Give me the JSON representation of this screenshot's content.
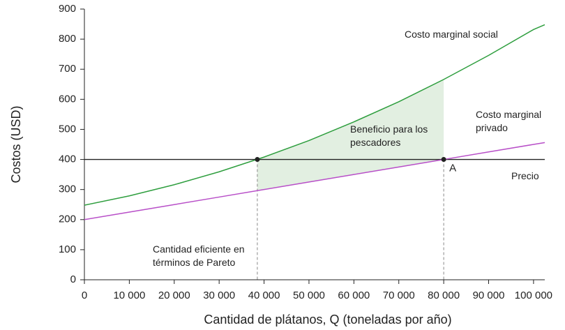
{
  "chart_data": {
    "type": "line",
    "xlabel": "Cantidad de plátanos, Q (toneladas por año)",
    "ylabel": "Costos (USD)",
    "x": [
      0,
      10000,
      20000,
      30000,
      40000,
      50000,
      60000,
      70000,
      80000,
      90000,
      100000,
      102500
    ],
    "series": [
      {
        "name": "Costo marginal social",
        "color": "#2e9e3e",
        "values": [
          248,
          279,
          316,
          359,
          408,
          463,
          525,
          592,
          666,
          746,
          832,
          848
        ]
      },
      {
        "name": "Costo marginal privado",
        "color": "#b84fc8",
        "values": [
          200,
          225,
          250,
          275,
          300,
          325,
          350,
          375,
          400,
          425,
          450,
          456
        ]
      }
    ],
    "price": {
      "name": "Precio",
      "value": 400,
      "color": "#222222"
    },
    "points": [
      {
        "x": 38500,
        "y": 400
      },
      {
        "x": 80000,
        "y": 400,
        "label": "A"
      }
    ],
    "area_label": "Beneficio para los pescadores",
    "area_color": "#e2efe1",
    "vline_label": "Cantidad eficiente en términos de Pareto",
    "xlim": [
      0,
      102500
    ],
    "ylim": [
      0,
      900
    ],
    "xticks": [
      0,
      {
        "value": 10000,
        "label": "10 000"
      },
      {
        "value": 20000,
        "label": "20 000"
      },
      {
        "value": 30000,
        "label": "30 000"
      },
      {
        "value": 40000,
        "label": "40 000"
      },
      {
        "value": 50000,
        "label": "50 000"
      },
      {
        "value": 60000,
        "label": "60 000"
      },
      {
        "value": 70000,
        "label": "70 000"
      },
      {
        "value": 80000,
        "label": "80 000"
      },
      {
        "value": 90000,
        "label": "90 000"
      },
      {
        "value": 100000,
        "label": "100 000"
      }
    ],
    "yticks": [
      0,
      100,
      200,
      300,
      400,
      500,
      600,
      700,
      800,
      900
    ]
  }
}
